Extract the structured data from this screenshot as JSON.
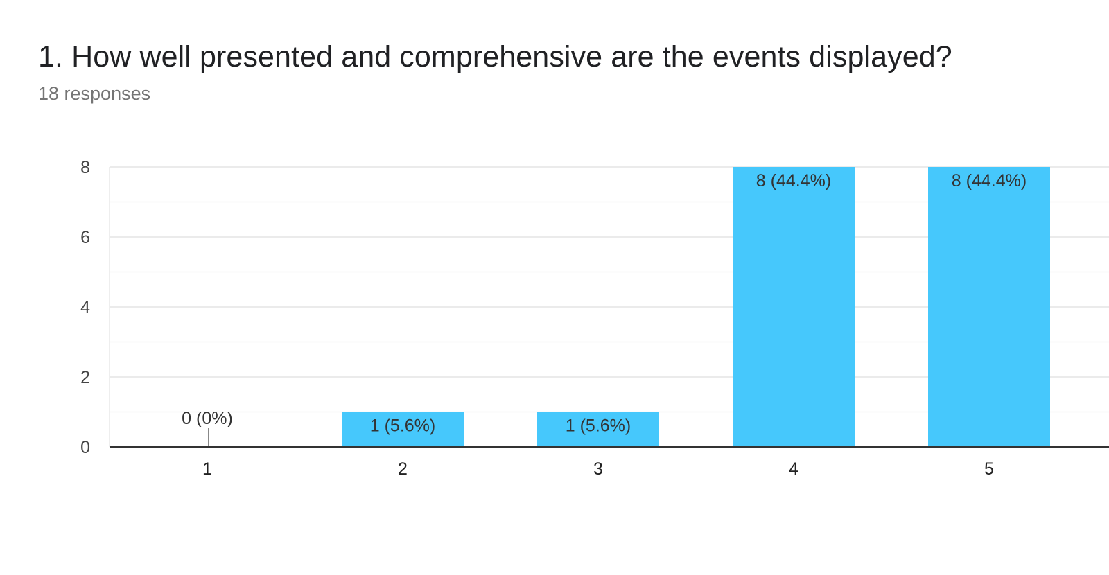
{
  "question": {
    "title": "1. How well presented and comprehensive are the events displayed?",
    "responses": "18 responses"
  },
  "chart_data": {
    "type": "bar",
    "categories": [
      "1",
      "2",
      "3",
      "4",
      "5"
    ],
    "values": [
      0,
      1,
      1,
      8,
      8
    ],
    "data_labels": [
      "0 (0%)",
      "1 (5.6%)",
      "1 (5.6%)",
      "8 (44.4%)",
      "8 (44.4%)"
    ],
    "ylim": [
      0,
      8
    ],
    "yticks": [
      "0",
      "2",
      "4",
      "6",
      "8"
    ],
    "grid": true,
    "bar_color": "#46c8fc"
  }
}
